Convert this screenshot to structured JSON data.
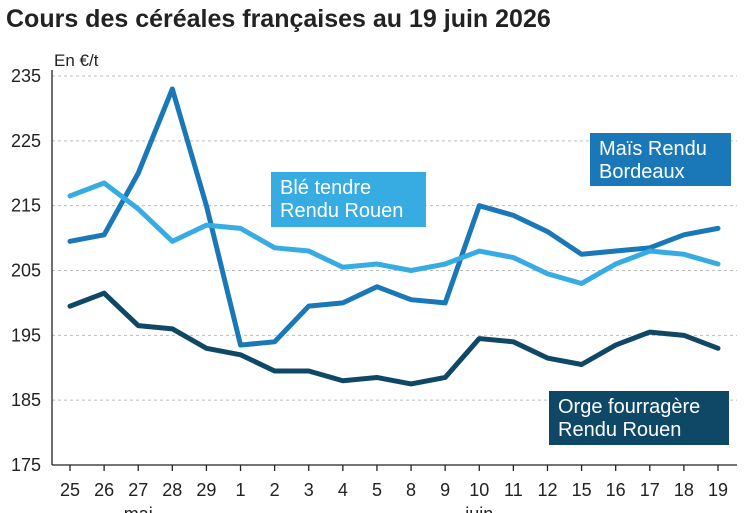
{
  "chart_data": {
    "type": "line",
    "title": "Cours des céréales françaises au 19 juin 2026",
    "ylabel": "En €/t",
    "ylim": [
      175,
      235
    ],
    "yticks": [
      175,
      185,
      195,
      205,
      215,
      225,
      235
    ],
    "grid": true,
    "categories": [
      "25",
      "26",
      "27",
      "28",
      "29",
      "1",
      "2",
      "3",
      "4",
      "5",
      "8",
      "9",
      "10",
      "11",
      "12",
      "15",
      "16",
      "17",
      "18",
      "19"
    ],
    "month_labels": [
      {
        "label": "mai",
        "at_index": 2
      },
      {
        "label": "juin",
        "at_index": 12
      }
    ],
    "series": [
      {
        "name": "Maïs Rendu Bordeaux",
        "label_lines": [
          "Maïs Rendu",
          "Bordeaux"
        ],
        "color": "#1a78b8",
        "values": [
          209.5,
          210.5,
          220,
          233,
          215,
          193.5,
          194,
          199.5,
          200,
          202.5,
          200.5,
          200,
          215,
          213.5,
          211,
          207.5,
          208,
          208.5,
          210.5,
          211.5
        ]
      },
      {
        "name": "Blé tendre Rendu Rouen",
        "label_lines": [
          "Blé tendre",
          "Rendu Rouen"
        ],
        "color": "#36ace2",
        "values": [
          216.5,
          218.5,
          214.5,
          209.5,
          212,
          211.5,
          208.5,
          208,
          205.5,
          206,
          205,
          206,
          208,
          207,
          204.5,
          203,
          206,
          208,
          207.5,
          206
        ]
      },
      {
        "name": "Orge fourragère Rendu Rouen",
        "label_lines": [
          "Orge fourragère",
          "Rendu Rouen"
        ],
        "color": "#0e4866",
        "values": [
          199.5,
          201.5,
          196.5,
          196,
          193,
          192,
          189.5,
          189.5,
          188,
          188.5,
          187.5,
          188.5,
          194.5,
          194,
          191.5,
          190.5,
          193.5,
          195.5,
          195,
          193
        ]
      }
    ]
  }
}
